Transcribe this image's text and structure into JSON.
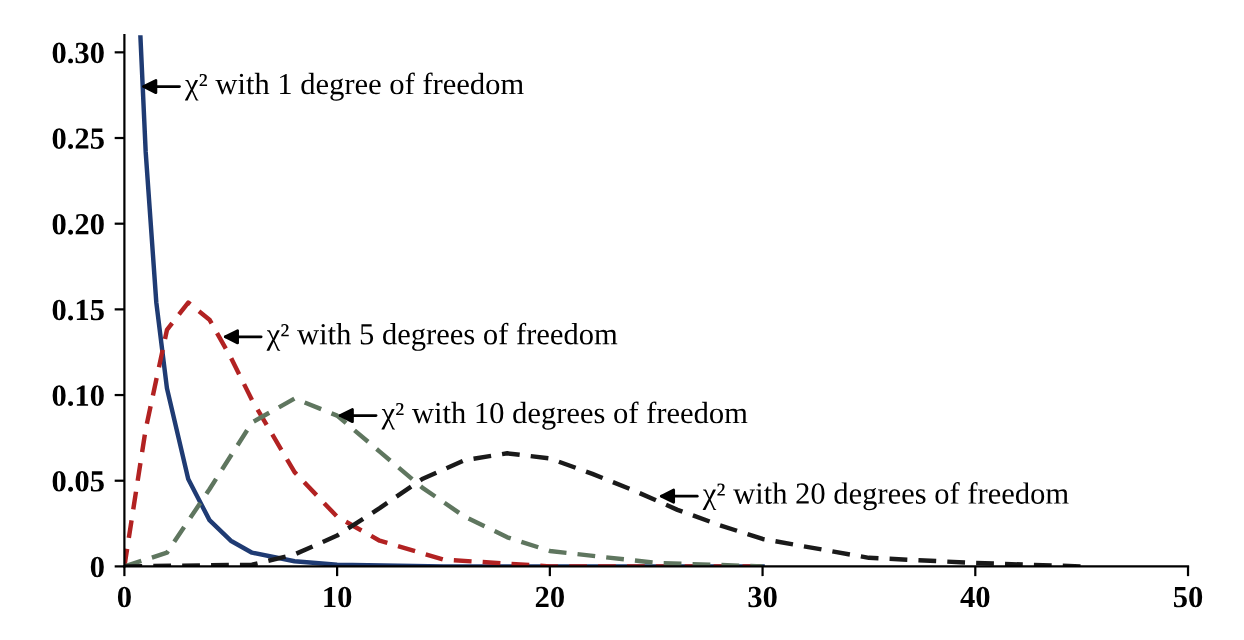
{
  "chart_data": {
    "type": "line",
    "xlim": [
      0,
      50
    ],
    "ylim": [
      0,
      0.31
    ],
    "xticks": [
      0,
      10,
      20,
      30,
      40,
      50
    ],
    "yticks": [
      0,
      {
        "value": 0.05,
        "label": "0.05"
      },
      {
        "value": 0.1,
        "label": "0.10"
      },
      {
        "value": 0.15,
        "label": "0.15"
      },
      {
        "value": 0.2,
        "label": "0.20"
      },
      {
        "value": 0.25,
        "label": "0.25"
      },
      {
        "value": 0.3,
        "label": "0.30"
      }
    ],
    "grid": false,
    "marker": "none",
    "series": [
      {
        "color": "#1f3b73",
        "line_style": "solid",
        "x": [
          0.75,
          1,
          1.5,
          2,
          3,
          4,
          5,
          6,
          8,
          10,
          15,
          20,
          30
        ],
        "values": [
          0.31,
          0.242,
          0.154,
          0.104,
          0.051,
          0.027,
          0.015,
          0.008,
          0.003,
          0.001,
          0,
          0,
          0
        ]
      },
      {
        "color": "#b22222",
        "line_style": "dashed",
        "x": [
          0,
          1,
          2,
          3,
          4,
          5,
          6,
          8,
          10,
          12,
          15,
          20,
          30
        ],
        "values": [
          0,
          0.08,
          0.138,
          0.154,
          0.144,
          0.122,
          0.097,
          0.055,
          0.029,
          0.015,
          0.004,
          0,
          0
        ]
      },
      {
        "color": "#5f765f",
        "line_style": "dashed",
        "x": [
          0,
          2,
          4,
          6,
          8,
          10,
          12,
          14,
          16,
          18,
          20,
          25,
          30
        ],
        "values": [
          0,
          0.008,
          0.045,
          0.084,
          0.098,
          0.088,
          0.067,
          0.046,
          0.029,
          0.017,
          0.009,
          0.002,
          0
        ]
      },
      {
        "color": "#1a1a1a",
        "line_style": "dashed",
        "x": [
          0,
          6,
          8,
          10,
          12,
          14,
          16,
          18,
          20,
          22,
          24,
          26,
          28,
          30,
          35,
          40,
          45
        ],
        "values": [
          0,
          0.001,
          0.007,
          0.018,
          0.034,
          0.051,
          0.062,
          0.066,
          0.063,
          0.054,
          0.044,
          0.033,
          0.024,
          0.016,
          0.005,
          0.002,
          0
        ]
      }
    ],
    "annotations": [
      {
        "text": "χ² with 1 degree of freedom",
        "x": 0.76,
        "y": 0.28
      },
      {
        "text": "χ² with 5 degrees of freedom",
        "x": 4.6,
        "y": 0.134
      },
      {
        "text": "χ² with 10 degrees of freedom",
        "x": 10,
        "y": 0.088
      },
      {
        "text": "χ² with 20 degrees of freedom",
        "x": 25.1,
        "y": 0.041
      }
    ]
  }
}
